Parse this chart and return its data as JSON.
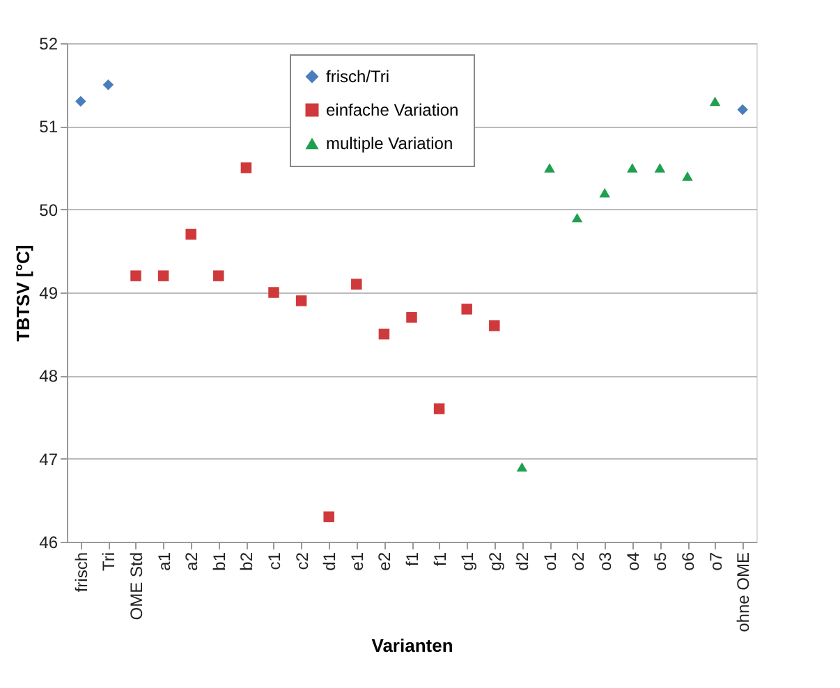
{
  "chart_data": {
    "type": "scatter",
    "xlabel": "Varianten",
    "ylabel": "TBTSV [°C]",
    "categories": [
      "frisch",
      "Tri",
      "OME Std",
      "a1",
      "a2",
      "b1",
      "b2",
      "c1",
      "c2",
      "d1",
      "e1",
      "e2",
      "f1",
      "f1",
      "g1",
      "g2",
      "d2",
      "o1",
      "o2",
      "o3",
      "o4",
      "o5",
      "o6",
      "o7",
      "ohne OME"
    ],
    "series": [
      {
        "name": "frisch/Tri",
        "color": "#4a7ebb",
        "marker": "diamond",
        "values": [
          51.3,
          51.5,
          null,
          null,
          null,
          null,
          null,
          null,
          null,
          null,
          null,
          null,
          null,
          null,
          null,
          null,
          null,
          null,
          null,
          null,
          null,
          null,
          null,
          null,
          51.2
        ]
      },
      {
        "name": "einfache Variation",
        "color": "#d0393b",
        "marker": "square",
        "values": [
          null,
          null,
          49.2,
          49.2,
          49.7,
          49.2,
          50.5,
          49.0,
          48.9,
          46.3,
          49.1,
          48.5,
          48.7,
          47.6,
          48.8,
          48.6,
          null,
          null,
          null,
          null,
          null,
          null,
          null,
          null,
          null
        ]
      },
      {
        "name": "multiple Variation",
        "color": "#1fa050",
        "marker": "triangle",
        "values": [
          null,
          null,
          null,
          null,
          null,
          null,
          null,
          null,
          null,
          null,
          null,
          null,
          null,
          null,
          null,
          null,
          46.9,
          50.5,
          49.9,
          50.2,
          50.5,
          50.5,
          50.4,
          51.3,
          null
        ]
      }
    ],
    "ylim": [
      46,
      52
    ],
    "yticks": [
      46,
      47,
      48,
      49,
      50,
      51,
      52
    ],
    "grid": "y",
    "legend": "top"
  }
}
